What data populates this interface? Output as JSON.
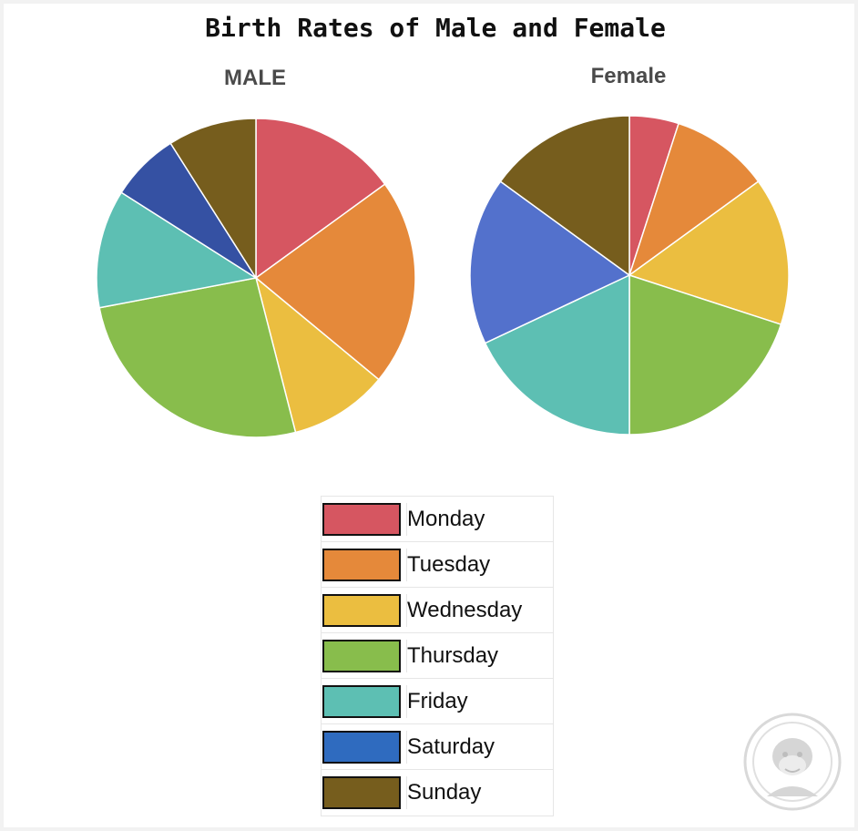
{
  "chart_data": [
    {
      "type": "pie",
      "title": "MALE",
      "categories": [
        "Monday",
        "Tuesday",
        "Wednesday",
        "Thursday",
        "Friday",
        "Saturday",
        "Sunday"
      ],
      "values": [
        15,
        21,
        10,
        26,
        12,
        7,
        9
      ]
    },
    {
      "type": "pie",
      "title": "Female",
      "categories": [
        "Monday",
        "Tuesday",
        "Wednesday",
        "Thursday",
        "Friday",
        "Saturday",
        "Sunday"
      ],
      "values": [
        5,
        10,
        15,
        20,
        18,
        17,
        15
      ]
    }
  ],
  "header": {
    "title": "Birth Rates of Male and Female"
  },
  "legend": {
    "items": [
      {
        "label": "Monday",
        "color": "#d65661"
      },
      {
        "label": "Tuesday",
        "color": "#e5893a"
      },
      {
        "label": "Wednesday",
        "color": "#ebbe40"
      },
      {
        "label": "Thursday",
        "color": "#88bd4c"
      },
      {
        "label": "Friday",
        "color": "#5dbfb3"
      },
      {
        "label": "Saturday",
        "color": "#2f6bbf"
      },
      {
        "label": "Sunday",
        "color": "#765d1d"
      }
    ]
  },
  "slice_colors": {
    "male": [
      "#d65661",
      "#e5893a",
      "#ebbe40",
      "#88bd4c",
      "#5dbfb3",
      "#3551a3",
      "#765d1d"
    ],
    "female": [
      "#d65661",
      "#e5893a",
      "#ebbe40",
      "#88bd4c",
      "#5dbfb3",
      "#5371cc",
      "#765d1d"
    ]
  },
  "watermark": {
    "icon": "gorilla-avatar-icon"
  }
}
